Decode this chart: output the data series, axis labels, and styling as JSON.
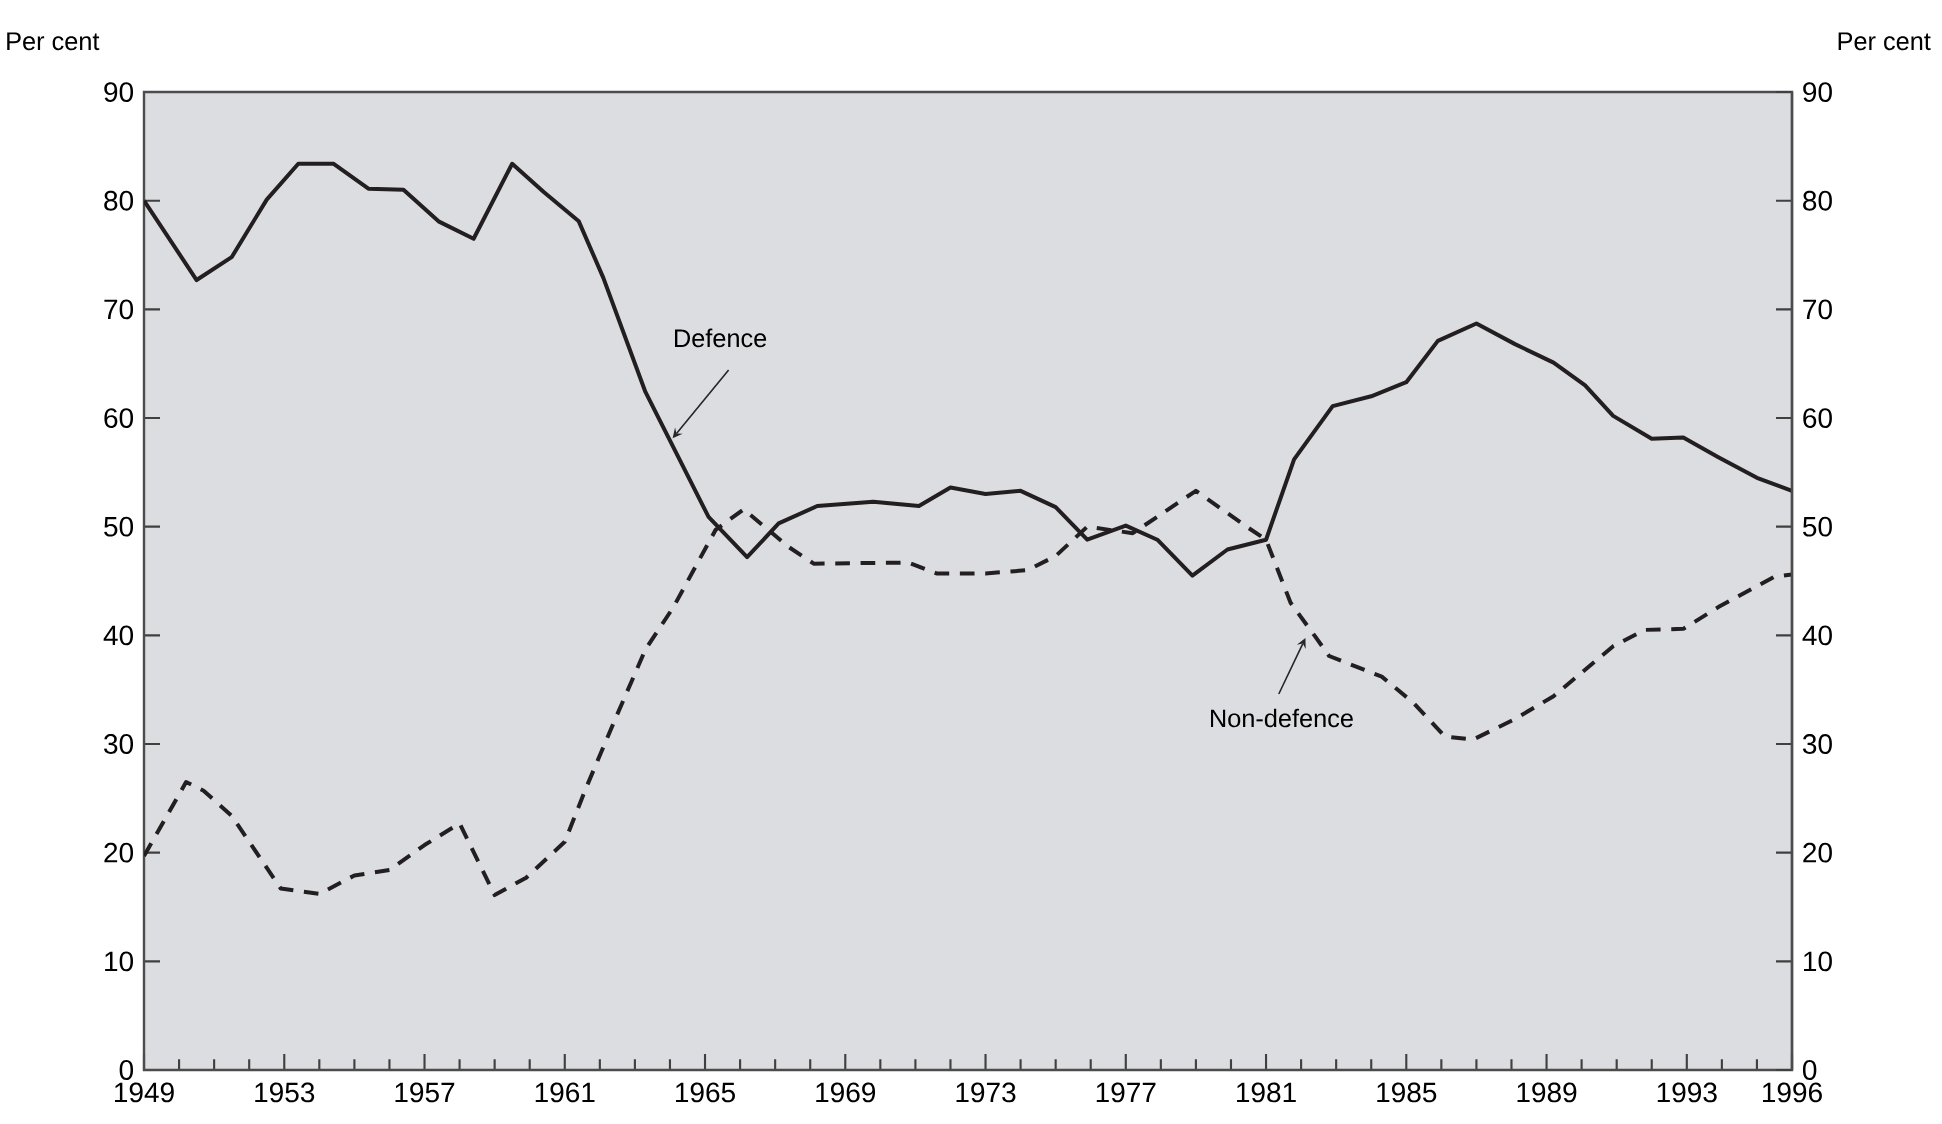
{
  "chart_data": {
    "type": "line",
    "ylabel": "Per cent",
    "y2label": "Per cent",
    "xlim": [
      1949,
      1996
    ],
    "ylim": [
      0,
      90
    ],
    "y2lim": [
      0,
      90
    ],
    "yticks": [
      0,
      10,
      20,
      30,
      40,
      50,
      60,
      70,
      80,
      90
    ],
    "y2ticks": [
      0,
      10,
      20,
      30,
      40,
      50,
      60,
      70,
      80,
      90
    ],
    "xticks": [
      1949,
      {
        "value": 1950,
        "label": null
      },
      {
        "value": 1951,
        "label": null
      },
      {
        "value": 1952,
        "label": null
      },
      1953,
      {
        "value": 1954,
        "label": null
      },
      {
        "value": 1955,
        "label": null
      },
      {
        "value": 1956,
        "label": null
      },
      1957,
      {
        "value": 1958,
        "label": null
      },
      {
        "value": 1959,
        "label": null
      },
      {
        "value": 1960,
        "label": null
      },
      1961,
      {
        "value": 1962,
        "label": null
      },
      {
        "value": 1963,
        "label": null
      },
      {
        "value": 1964,
        "label": null
      },
      1965,
      {
        "value": 1966,
        "label": null
      },
      {
        "value": 1967,
        "label": null
      },
      {
        "value": 1968,
        "label": null
      },
      1969,
      {
        "value": 1970,
        "label": null
      },
      {
        "value": 1971,
        "label": null
      },
      {
        "value": 1972,
        "label": null
      },
      1973,
      {
        "value": 1974,
        "label": null
      },
      {
        "value": 1975,
        "label": null
      },
      {
        "value": 1976,
        "label": null
      },
      1977,
      {
        "value": 1978,
        "label": null
      },
      {
        "value": 1979,
        "label": null
      },
      {
        "value": 1980,
        "label": null
      },
      1981,
      {
        "value": 1982,
        "label": null
      },
      {
        "value": 1983,
        "label": null
      },
      {
        "value": 1984,
        "label": null
      },
      1985,
      {
        "value": 1986,
        "label": null
      },
      {
        "value": 1987,
        "label": null
      },
      {
        "value": 1988,
        "label": null
      },
      1989,
      {
        "value": 1990,
        "label": null
      },
      {
        "value": 1991,
        "label": null
      },
      {
        "value": 1992,
        "label": null
      },
      1993,
      {
        "value": 1994,
        "label": null
      },
      {
        "value": 1995,
        "label": null
      },
      1996
    ],
    "grid": false,
    "marker": "none",
    "series": [
      {
        "color": "#231f20",
        "line_style": "solid",
        "x": [
          1949,
          1950.5,
          1951.5,
          1952.5,
          1953.4,
          1954.4,
          1955.4,
          1956.4,
          1957.4,
          1958.4,
          1959.5,
          1960.4,
          1961.4,
          1962.1,
          1963.3,
          1965.1,
          1966.2,
          1967.1,
          1968.2,
          1969.8,
          1971.1,
          1972.0,
          1973.0,
          1974.0,
          1975.0,
          1975.9,
          1977.0,
          1977.9,
          1978.9,
          1979.9,
          1981.0,
          1981.8,
          1982.9,
          1984.0,
          1985.0,
          1985.9,
          1987.0,
          1988.1,
          1989.2,
          1990.1,
          1990.9,
          1992.0,
          1992.9,
          1993.9,
          1995.0,
          1996
        ],
        "values": [
          80,
          72.7,
          74.8,
          80.1,
          83.4,
          83.4,
          81.1,
          81.0,
          78.1,
          76.5,
          83.4,
          80.8,
          78.1,
          72.9,
          62.4,
          50.9,
          47.2,
          50.3,
          51.9,
          52.3,
          51.9,
          53.6,
          53.0,
          53.3,
          51.8,
          48.8,
          50.1,
          48.8,
          45.5,
          47.9,
          48.8,
          56.2,
          61.1,
          62.0,
          63.3,
          67.1,
          68.7,
          66.8,
          65.1,
          63.0,
          60.2,
          58.1,
          58.2,
          56.4,
          54.5,
          53.3
        ]
      },
      {
        "color": "#231f20",
        "line_style": "dashed",
        "x": [
          1949,
          1950.2,
          1950.7,
          1951.5,
          1952.9,
          1954.0,
          1955.0,
          1956.0,
          1957.0,
          1958.0,
          1959.0,
          1959.9,
          1961.0,
          1961.6,
          1962.4,
          1963.3,
          1964.1,
          1965.3,
          1966.1,
          1967.4,
          1968.1,
          1970.8,
          1971.6,
          1973.0,
          1974.2,
          1975.0,
          1975.9,
          1977.2,
          1979.0,
          1980.4,
          1981.0,
          1981.7,
          1982.4,
          1982.8,
          1984.3,
          1985.2,
          1986.1,
          1986.9,
          1988.1,
          1989.2,
          1990.9,
          1991.8,
          1992.9,
          1993.9,
          1995.5,
          1996
        ],
        "values": [
          19.7,
          26.5,
          25.7,
          23.4,
          16.7,
          16.2,
          17.9,
          18.4,
          20.7,
          22.7,
          16.1,
          17.7,
          21.0,
          25.9,
          32.0,
          38.7,
          42.6,
          49.7,
          51.6,
          48.1,
          46.6,
          46.7,
          45.7,
          45.7,
          46.0,
          47.3,
          50.0,
          49.4,
          53.3,
          50.1,
          48.8,
          43.0,
          39.9,
          38.1,
          36.2,
          33.8,
          30.7,
          30.4,
          32.3,
          34.4,
          39.0,
          40.5,
          40.6,
          42.6,
          45.4,
          45.6
        ]
      }
    ],
    "annotations": [
      {
        "text": "Defence",
        "x": 1964.0,
        "y": 57.9
      },
      {
        "text": "Non-defence",
        "x": 1982.2,
        "y": 40
      }
    ]
  }
}
